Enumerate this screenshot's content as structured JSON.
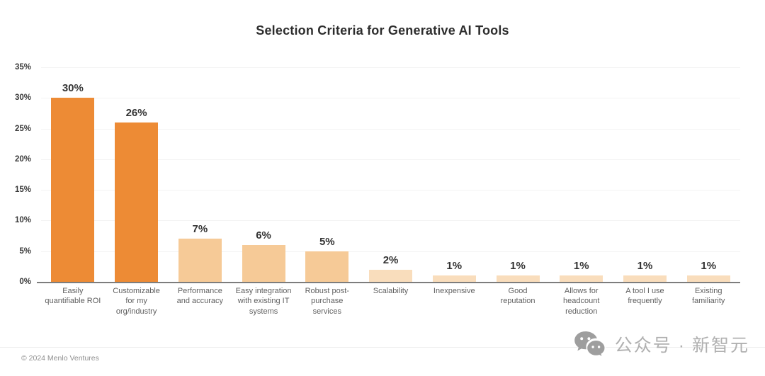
{
  "title": "Selection Criteria for Generative AI Tools",
  "chart_data": {
    "type": "bar",
    "title": "Selection Criteria for Generative AI Tools",
    "categories": [
      [
        "Easily",
        "quantifiable ROI"
      ],
      [
        "Customizable",
        "for my",
        "org/industry"
      ],
      [
        "Performance",
        "and accuracy"
      ],
      [
        "Easy integration",
        "with existing IT",
        "systems"
      ],
      [
        "Robust post-",
        "purchase",
        "services"
      ],
      [
        "Scalability"
      ],
      [
        "Inexpensive"
      ],
      [
        "Good",
        "reputation"
      ],
      [
        "Allows for",
        "headcount",
        "reduction"
      ],
      [
        "A tool I use",
        "frequently"
      ],
      [
        "Existing",
        "familiarity"
      ]
    ],
    "values": [
      30,
      26,
      7,
      6,
      5,
      2,
      1,
      1,
      1,
      1,
      1
    ],
    "value_labels": [
      "30%",
      "26%",
      "7%",
      "6%",
      "5%",
      "2%",
      "1%",
      "1%",
      "1%",
      "1%",
      "1%"
    ],
    "bar_colors": [
      "#ED8B35",
      "#ED8B35",
      "#F6CA97",
      "#F6CA97",
      "#F6CA97",
      "#F9DDBC",
      "#F9DDBC",
      "#F9DDBC",
      "#F9DDBC",
      "#F9DDBC",
      "#F9DDBC"
    ],
    "xlabel": "",
    "ylabel": "",
    "ylim": [
      0,
      35
    ],
    "yticks": [
      "35%",
      "30%",
      "25%",
      "20%",
      "15%",
      "10%",
      "5%",
      "0%"
    ],
    "grid": true,
    "legend": "none",
    "gridline_color": "#f3f3f3",
    "baseline_color": "#7d7d7d"
  },
  "footer": {
    "copyright": "© 2024 Menlo Ventures"
  },
  "watermark": {
    "icon": "wechat-icon",
    "text": "公众号 · 新智元",
    "color": "#b0b0b0"
  }
}
